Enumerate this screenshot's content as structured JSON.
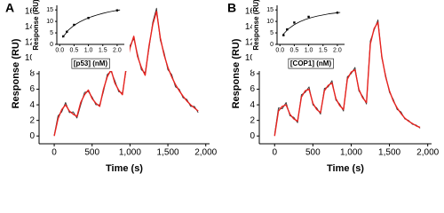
{
  "chart_data": [
    {
      "type": "line",
      "label": "A",
      "xlabel": "Time (s)",
      "ylabel": "Response (RU)",
      "x": [
        0,
        50,
        100,
        150,
        200,
        250,
        300,
        350,
        400,
        450,
        500,
        550,
        600,
        650,
        700,
        750,
        800,
        850,
        900,
        950,
        1000,
        1050,
        1100,
        1150,
        1200,
        1250,
        1300,
        1350,
        1400,
        1450,
        1500,
        1550,
        1600,
        1650,
        1700,
        1750,
        1800,
        1850,
        1900
      ],
      "series": [
        {
          "color": "#333333",
          "values": [
            0.1,
            2.6,
            3.1,
            4.3,
            3.0,
            3.1,
            2.3,
            4.0,
            5.6,
            5.7,
            5.0,
            4.0,
            4.0,
            5.7,
            7.9,
            8.3,
            7.1,
            5.7,
            5.5,
            8.5,
            11.6,
            12.5,
            10.5,
            8.5,
            8.1,
            11.2,
            14.6,
            16.4,
            12.3,
            10.7,
            8.5,
            7.9,
            6.3,
            6.0,
            4.9,
            4.7,
            3.8,
            3.8,
            3.0
          ]
        },
        {
          "color": "#e8231f",
          "values": [
            0,
            2.2,
            3.4,
            4.0,
            3.2,
            2.8,
            2.5,
            4.3,
            5.3,
            5.9,
            4.8,
            4.2,
            3.8,
            6.0,
            7.6,
            8.5,
            6.8,
            5.9,
            5.3,
            8.8,
            11.3,
            12.8,
            10.2,
            8.8,
            7.8,
            11.5,
            14.3,
            16.0,
            12.6,
            10.4,
            8.8,
            7.6,
            6.6,
            5.8,
            5.1,
            4.5,
            4.0,
            3.6,
            3.2
          ]
        }
      ],
      "xlim": [
        -200,
        2050
      ],
      "ylim": [
        -1,
        17
      ],
      "xticks": [
        0,
        500,
        {
          "value": 1000,
          "label": "1,000"
        },
        {
          "value": 1500,
          "label": "1,500"
        },
        {
          "value": 2000,
          "label": "2,000"
        }
      ],
      "yticks": [
        0,
        2,
        4,
        6,
        8,
        10,
        12,
        14,
        16
      ]
    },
    {
      "type": "scatter",
      "xlabel": "[p53] (nM)",
      "ylabel": "Response (RU)",
      "series": [
        {
          "color": "#000000",
          "mode": "markers",
          "x": [
            0.125,
            0.25,
            0.5,
            1,
            2
          ],
          "values": [
            3.5,
            5.5,
            8.5,
            11.5,
            14.8
          ]
        },
        {
          "color": "#000000",
          "mode": "line",
          "x": [
            0.1,
            0.3,
            0.5,
            0.7,
            0.9,
            1.1,
            1.3,
            1.5,
            1.7,
            1.9,
            2.1
          ],
          "values": [
            3.0,
            6.2,
            8.3,
            9.8,
            11.0,
            12.0,
            12.8,
            13.5,
            14.1,
            14.6,
            15.0
          ]
        }
      ],
      "xlim": [
        -0.1,
        2.25
      ],
      "ylim": [
        0,
        17
      ],
      "xticks": [
        {
          "value": 0,
          "label": "0.0"
        },
        0.5,
        {
          "value": 1,
          "label": "1.0"
        },
        1.5,
        {
          "value": 2,
          "label": "2.0"
        }
      ],
      "yticks": [
        0,
        5,
        10,
        15
      ]
    },
    {
      "type": "line",
      "label": "B",
      "xlabel": "Time (s)",
      "ylabel": "Response (RU)",
      "x": [
        0,
        50,
        100,
        150,
        200,
        250,
        300,
        350,
        400,
        450,
        500,
        550,
        600,
        650,
        700,
        750,
        800,
        850,
        900,
        950,
        1000,
        1050,
        1100,
        1150,
        1200,
        1250,
        1300,
        1350,
        1400,
        1450,
        1500,
        1550,
        1600,
        1650,
        1700,
        1750,
        1800,
        1850,
        1900
      ],
      "series": [
        {
          "color": "#333333",
          "values": [
            0.2,
            3.6,
            3.5,
            4.3,
            2.6,
            2.4,
            1.7,
            5.3,
            5.6,
            6.3,
            4.0,
            3.6,
            2.8,
            6.1,
            6.3,
            7.1,
            4.6,
            4.1,
            3.2,
            7.6,
            8.0,
            8.8,
            5.8,
            5.1,
            4.1,
            12.2,
            13.6,
            14.9,
            10.0,
            7.8,
            5.6,
            4.7,
            3.4,
            3.1,
            2.2,
            2.0,
            1.5,
            1.4,
            1.0
          ]
        },
        {
          "color": "#e8231f",
          "values": [
            0,
            3.2,
            3.8,
            4.0,
            2.8,
            2.2,
            1.9,
            5.0,
            5.8,
            6.0,
            4.2,
            3.4,
            3.0,
            5.8,
            6.5,
            6.8,
            4.8,
            3.9,
            3.4,
            7.3,
            8.2,
            8.5,
            6.0,
            4.9,
            4.3,
            11.8,
            13.8,
            14.6,
            10.2,
            7.6,
            5.8,
            4.5,
            3.6,
            2.9,
            2.3,
            1.9,
            1.6,
            1.3,
            1.1
          ]
        }
      ],
      "xlim": [
        -200,
        2050
      ],
      "ylim": [
        -1,
        17
      ],
      "xticks": [
        0,
        500,
        {
          "value": 1000,
          "label": "1,000"
        },
        {
          "value": 1500,
          "label": "1,500"
        },
        {
          "value": 2000,
          "label": "2,000"
        }
      ],
      "yticks": [
        0,
        2,
        4,
        6,
        8,
        10,
        12,
        14,
        16
      ]
    },
    {
      "type": "scatter",
      "xlabel": "[COP1] (nM)",
      "ylabel": "Response (RU)",
      "series": [
        {
          "color": "#000000",
          "mode": "markers",
          "x": [
            0.125,
            0.25,
            0.5,
            1,
            2
          ],
          "values": [
            4.0,
            6.5,
            9.5,
            12.0,
            13.8
          ]
        },
        {
          "color": "#000000",
          "mode": "line",
          "x": [
            0.1,
            0.3,
            0.5,
            0.7,
            0.9,
            1.1,
            1.3,
            1.5,
            1.7,
            1.9,
            2.1
          ],
          "values": [
            4.2,
            6.8,
            8.6,
            9.9,
            10.9,
            11.7,
            12.3,
            12.8,
            13.3,
            13.6,
            13.9
          ]
        }
      ],
      "xlim": [
        -0.1,
        2.25
      ],
      "ylim": [
        0,
        17
      ],
      "xticks": [
        {
          "value": 0,
          "label": "0.0"
        },
        0.5,
        {
          "value": 1,
          "label": "1.0"
        },
        1.5,
        {
          "value": 2,
          "label": "2.0"
        }
      ],
      "yticks": [
        0,
        5,
        10,
        15
      ]
    }
  ]
}
